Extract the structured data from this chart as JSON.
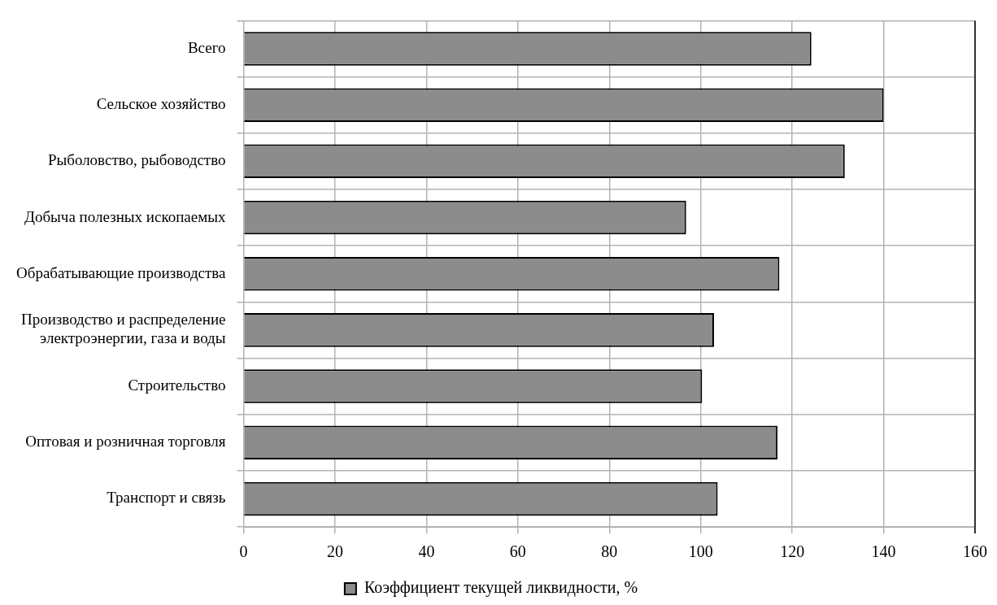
{
  "chart_data": {
    "type": "bar",
    "orientation": "horizontal",
    "categories": [
      "Всего",
      "Сельское хозяйство",
      "Рыболовство, рыбоводство",
      "Добыча полезных ископаемых",
      "Обрабатывающие производства",
      "Производство и распределение электроэнергии, газа и воды",
      "Строительство",
      "Оптовая и розничная торговля",
      "Транспорт и связь"
    ],
    "series": [
      {
        "name": "Коэффициент текущей ликвидности, %",
        "color": "#8c8c8c",
        "values": [
          124.2,
          140,
          131.5,
          96.8,
          117.2,
          102.9,
          100.3,
          116.8,
          103.7
        ]
      }
    ],
    "xlim": [
      0,
      160
    ],
    "xticks": [
      0,
      20,
      40,
      60,
      80,
      100,
      120,
      140,
      160
    ],
    "grid": true,
    "legend": "bottom"
  }
}
